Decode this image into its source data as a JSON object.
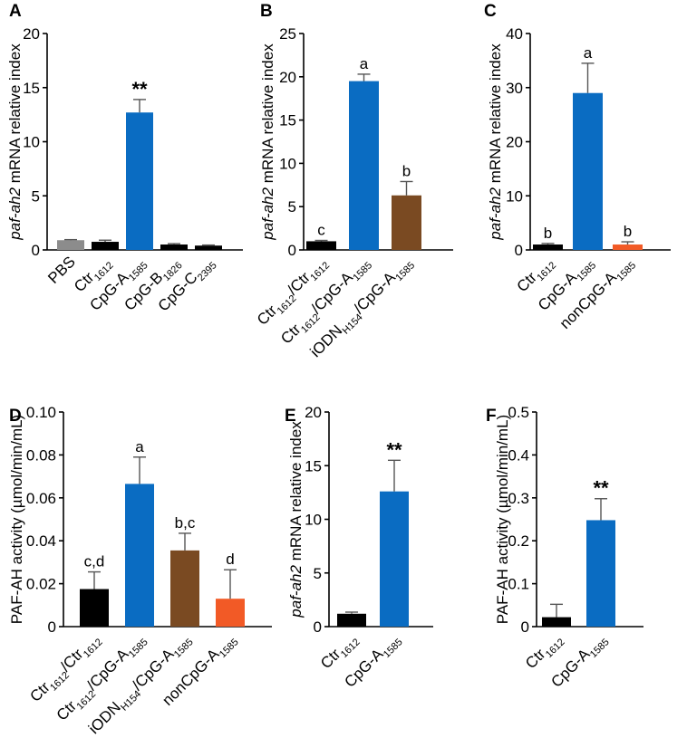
{
  "colors": {
    "gray": "#8c8c8c",
    "black": "#000000",
    "blue": "#0a6cc2",
    "brown": "#7a4a22",
    "orange": "#f25a26"
  },
  "chart_data": [
    {
      "panel": "A",
      "type": "bar",
      "ylabel": {
        "italic": "paf-ah2",
        "rest": " mRNA relative index"
      },
      "ylim": [
        0,
        20
      ],
      "yticks": [
        0,
        5,
        10,
        15,
        20
      ],
      "categories": [
        {
          "main": "PBS",
          "sub": "",
          "color": "gray",
          "value": 0.9,
          "err": 0.05,
          "annot": "",
          "label_color": "gray"
        },
        {
          "main": "Ctr",
          "sub": "1612",
          "color": "black",
          "value": 0.75,
          "err": 0.15,
          "annot": ""
        },
        {
          "main": "CpG-A",
          "sub": "1585",
          "color": "blue",
          "value": 12.7,
          "err": 1.2,
          "annot": "**"
        },
        {
          "main": "CpG-B",
          "sub": "1826",
          "color": "black",
          "value": 0.5,
          "err": 0.08,
          "annot": ""
        },
        {
          "main": "CpG-C",
          "sub": "2395",
          "color": "black",
          "value": 0.4,
          "err": 0.05,
          "annot": ""
        }
      ]
    },
    {
      "panel": "B",
      "type": "bar",
      "ylabel": {
        "italic": "paf-ah2",
        "rest": " mRNA relative index"
      },
      "ylim": [
        0,
        25
      ],
      "yticks": [
        0,
        5,
        10,
        15,
        20,
        25
      ],
      "categories": [
        {
          "main": "Ctr",
          "sub": "1612",
          "main2": "/Ctr",
          "sub2": "1612",
          "color": "black",
          "value": 1.0,
          "err": 0.1,
          "annot": "c"
        },
        {
          "main": "Ctr",
          "sub": "1612",
          "main2": "/CpG-A",
          "sub2": "1585",
          "color": "blue",
          "value": 19.5,
          "err": 0.8,
          "annot": "a"
        },
        {
          "main": "iODN",
          "sub": "H154",
          "main2": "/CpG-A",
          "sub2": "1585",
          "color": "brown",
          "value": 6.3,
          "err": 1.6,
          "annot": "b"
        }
      ]
    },
    {
      "panel": "C",
      "type": "bar",
      "ylabel": {
        "italic": "paf-ah2",
        "rest": " mRNA relative index"
      },
      "ylim": [
        0,
        40
      ],
      "yticks": [
        0,
        10,
        20,
        30,
        40
      ],
      "categories": [
        {
          "main": "Ctr",
          "sub": "1612",
          "color": "black",
          "value": 1.0,
          "err": 0.2,
          "annot": "b"
        },
        {
          "main": "CpG-A",
          "sub": "1585",
          "color": "blue",
          "value": 29.0,
          "err": 5.5,
          "annot": "a"
        },
        {
          "main": "nonCpG-A",
          "sub": "1585",
          "color": "orange",
          "value": 1.0,
          "err": 0.5,
          "annot": "b"
        }
      ]
    },
    {
      "panel": "D",
      "type": "bar",
      "ylabel": {
        "italic": "",
        "rest": "PAF-AH activity (µmol/min/mL)"
      },
      "ylim": [
        0,
        0.1
      ],
      "yticks": [
        "0",
        "0.02",
        "0.04",
        "0.06",
        "0.08",
        "0.10"
      ],
      "categories": [
        {
          "main": "Ctr",
          "sub": "1612",
          "main2": "/Ctr",
          "sub2": "1612",
          "color": "black",
          "value": 0.0175,
          "err": 0.008,
          "annot": "c,d"
        },
        {
          "main": "Ctr",
          "sub": "1612",
          "main2": "/CpG-A",
          "sub2": "1585",
          "color": "blue",
          "value": 0.0665,
          "err": 0.0125,
          "annot": "a"
        },
        {
          "main": "iODN",
          "sub": "H154",
          "main2": "/CpG-A",
          "sub2": "1585",
          "color": "brown",
          "value": 0.0355,
          "err": 0.008,
          "annot": "b,c"
        },
        {
          "main": "nonCpG-A",
          "sub": "1585",
          "color": "orange",
          "value": 0.013,
          "err": 0.0135,
          "annot": "d"
        }
      ]
    },
    {
      "panel": "E",
      "type": "bar",
      "ylabel": {
        "italic": "paf-ah2",
        "rest": " mRNA relative index"
      },
      "ylim": [
        0,
        20
      ],
      "yticks": [
        0,
        5,
        10,
        15,
        20
      ],
      "categories": [
        {
          "main": "Ctr",
          "sub": "1612",
          "color": "black",
          "value": 1.2,
          "err": 0.15,
          "annot": ""
        },
        {
          "main": "CpG-A",
          "sub": "1585",
          "color": "blue",
          "value": 12.6,
          "err": 2.9,
          "annot": "**"
        }
      ]
    },
    {
      "panel": "F",
      "type": "bar",
      "ylabel": {
        "italic": "",
        "rest": "PAF-AH activity (µmol/min/mL)"
      },
      "ylim": [
        0,
        0.5
      ],
      "yticks": [
        "0",
        "0.1",
        "0.2",
        "0.3",
        "0.4",
        "0.5"
      ],
      "categories": [
        {
          "main": "Ctr",
          "sub": "1612",
          "color": "black",
          "value": 0.022,
          "err": 0.03,
          "annot": ""
        },
        {
          "main": "CpG-A",
          "sub": "1585",
          "color": "blue",
          "value": 0.248,
          "err": 0.05,
          "annot": "**"
        }
      ]
    }
  ]
}
